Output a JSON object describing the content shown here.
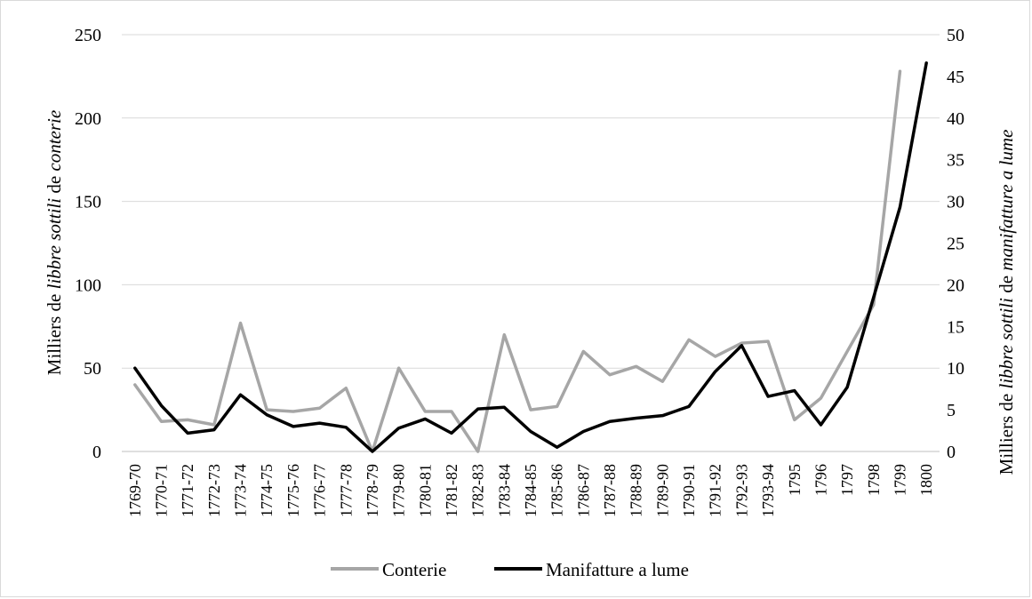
{
  "chart_data": {
    "type": "line",
    "categories": [
      "1769-70",
      "1770-71",
      "1771-72",
      "1772-73",
      "1773-74",
      "1774-75",
      "1775-76",
      "1776-77",
      "1777-78",
      "1778-79",
      "1779-80",
      "1780-81",
      "1781-82",
      "1782-83",
      "1783-84",
      "1784-85",
      "1785-86",
      "1786-87",
      "1787-88",
      "1788-89",
      "1789-90",
      "1790-91",
      "1791-92",
      "1792-93",
      "1793-94",
      "1795",
      "1796",
      "1797",
      "1798",
      "1799",
      "1800"
    ],
    "series": [
      {
        "name": "Conterie",
        "axis": "left",
        "color": "#a6a6a6",
        "values": [
          40,
          18,
          19,
          16,
          77,
          25,
          24,
          26,
          38,
          0,
          50,
          24,
          24,
          0,
          70,
          25,
          27,
          60,
          46,
          51,
          42,
          67,
          57,
          65,
          66,
          19,
          32,
          60,
          88,
          228,
          null
        ]
      },
      {
        "name": "Manifatture a lume",
        "axis": "right",
        "color": "#000000",
        "values": [
          10,
          5.5,
          2.2,
          2.6,
          6.8,
          4.4,
          3.0,
          3.4,
          2.9,
          0,
          2.8,
          3.9,
          2.2,
          5.1,
          5.3,
          2.4,
          0.5,
          2.4,
          3.6,
          4.0,
          4.3,
          5.4,
          9.6,
          12.7,
          6.6,
          7.3,
          3.2,
          7.7,
          18.5,
          29.3,
          46.6
        ]
      }
    ],
    "y_left": {
      "label_prefix": "Milliers de ",
      "label_italic": "libbre sottili",
      "label_mid": " de ",
      "label_italic2": "conterie",
      "ylim": [
        0,
        250
      ],
      "ticks": [
        "0",
        "50",
        "100",
        "150",
        "200",
        "250"
      ]
    },
    "y_right": {
      "label_prefix": "Milliers de ",
      "label_italic": "libbre sottili",
      "label_mid": " de ",
      "label_italic2": "manifatture a lume",
      "ylim": [
        0,
        50
      ],
      "ticks": [
        "0",
        "5",
        "10",
        "15",
        "20",
        "25",
        "30",
        "35",
        "40",
        "45",
        "50"
      ]
    },
    "grid": true,
    "legend_position": "bottom"
  }
}
